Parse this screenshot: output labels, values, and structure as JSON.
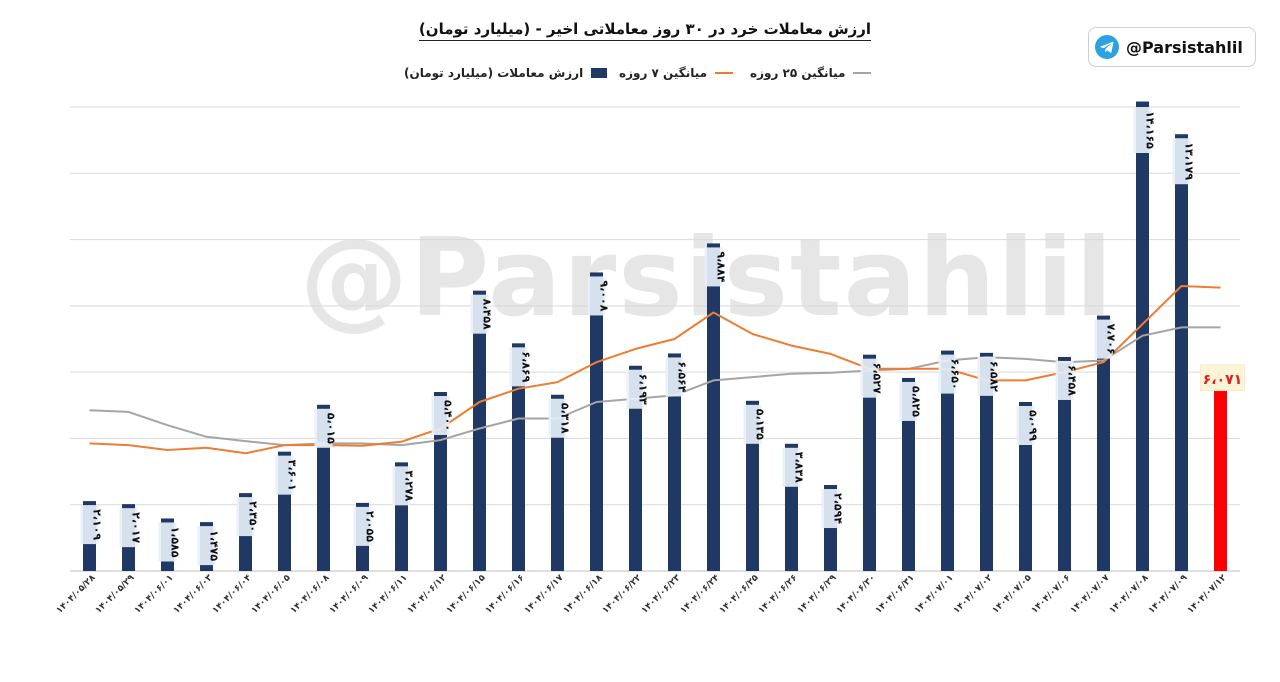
{
  "header": {
    "title": "ارزش معاملات خرد در ۳۰ روز معاملاتی اخیر - (میلیارد تومان)",
    "handle": "@Parsistahlil",
    "watermark": "@Parsistahlil"
  },
  "legend": {
    "bars": "ارزش معاملات (میلیارد تومان)",
    "ma7": "میانگین ۷ روزه",
    "ma25": "میانگین ۲۵ روزه"
  },
  "colors": {
    "bar": "#1f3864",
    "last_bar": "#ff0000",
    "ma7": "#ed7d31",
    "ma25": "#a5a5a5",
    "grid": "#d9d9d9"
  },
  "chart_data": {
    "type": "bar",
    "ylim": [
      0,
      14000
    ],
    "grid": true,
    "categories": [
      "۱۴۰۴/۰۵/۲۸",
      "۱۴۰۴/۰۵/۲۹",
      "۱۴۰۴/۰۶/۰۱",
      "۱۴۰۴/۰۶/۰۳",
      "۱۴۰۴/۰۶/۰۴",
      "۱۴۰۴/۰۶/۰۵",
      "۱۴۰۴/۰۶/۰۸",
      "۱۴۰۴/۰۶/۰۹",
      "۱۴۰۴/۰۶/۱۱",
      "۱۴۰۴/۰۶/۱۲",
      "۱۴۰۴/۰۶/۱۵",
      "۱۴۰۴/۰۶/۱۶",
      "۱۴۰۴/۰۶/۱۷",
      "۱۴۰۴/۰۶/۱۸",
      "۱۴۰۴/۰۶/۲۲",
      "۱۴۰۴/۰۶/۲۳",
      "۱۴۰۴/۰۶/۲۴",
      "۱۴۰۴/۰۶/۲۵",
      "۱۴۰۴/۰۶/۲۶",
      "۱۴۰۴/۰۶/۲۹",
      "۱۴۰۴/۰۶/۳۰",
      "۱۴۰۴/۰۶/۳۱",
      "۱۴۰۴/۰۷/۰۱",
      "۱۴۰۴/۰۷/۰۲",
      "۱۴۰۴/۰۷/۰۵",
      "۱۴۰۴/۰۷/۰۶",
      "۱۴۰۴/۰۷/۰۷",
      "۱۴۰۴/۰۷/۰۸",
      "۱۴۰۴/۰۷/۰۹",
      "۱۴۰۴/۰۷/۱۲"
    ],
    "series": [
      {
        "name": "ارزش معاملات (میلیارد تومان)",
        "values": [
          2109,
          2017,
          1585,
          1475,
          2350,
          3601,
          5015,
          2055,
          3278,
          5400,
          8458,
          6869,
          5318,
          9008,
          6193,
          6564,
          9884,
          5135,
          3838,
          2594,
          6527,
          5825,
          6650,
          6582,
          5099,
          6458,
          7706,
          14165,
          13179,
          6071
        ],
        "labels": [
          "۲،۱۰۹",
          "۲،۰۱۷",
          "۱،۵۸۵",
          "۱،۴۷۵",
          "۲،۳۵۰",
          "۳،۶۰۱",
          "۵،۰۱۵",
          "۲،۰۵۵",
          "۳،۲۷۸",
          "۵،۴۰۰",
          "۸،۴۵۸",
          "۶،۸۶۹",
          "۵،۳۱۸",
          "۹،۰۰۸",
          "۶،۱۹۳",
          "۶،۵۶۴",
          "۹،۸۸۴",
          "۵،۱۳۵",
          "۳،۸۳۸",
          "۲،۵۹۴",
          "۶،۵۲۷",
          "۵،۸۲۵",
          "۶،۶۵۰",
          "۶،۵۸۲",
          "۵،۰۹۹",
          "۶،۴۵۸",
          "۷،۷۰۶",
          "۱۴،۱۶۵",
          "۱۳،۱۷۹",
          "۶،۰۷۱"
        ]
      },
      {
        "name": "میانگین ۷ روزه",
        "type": "line",
        "values": [
          3850,
          3800,
          3650,
          3720,
          3550,
          3800,
          3800,
          3780,
          3900,
          4300,
          5100,
          5500,
          5700,
          6300,
          6700,
          7000,
          7800,
          7150,
          6800,
          6550,
          6100,
          6100,
          6100,
          5750,
          5750,
          6000,
          6300,
          7450,
          8600,
          8550
        ]
      },
      {
        "name": "میانگین ۲۵ روزه",
        "type": "line",
        "values": [
          4850,
          4800,
          4400,
          4050,
          3920,
          3800,
          3850,
          3850,
          3800,
          3950,
          4300,
          4600,
          4600,
          5100,
          5200,
          5300,
          5750,
          5850,
          5950,
          5980,
          6050,
          6100,
          6350,
          6450,
          6400,
          6300,
          6350,
          7100,
          7350,
          7350
        ]
      }
    ]
  }
}
